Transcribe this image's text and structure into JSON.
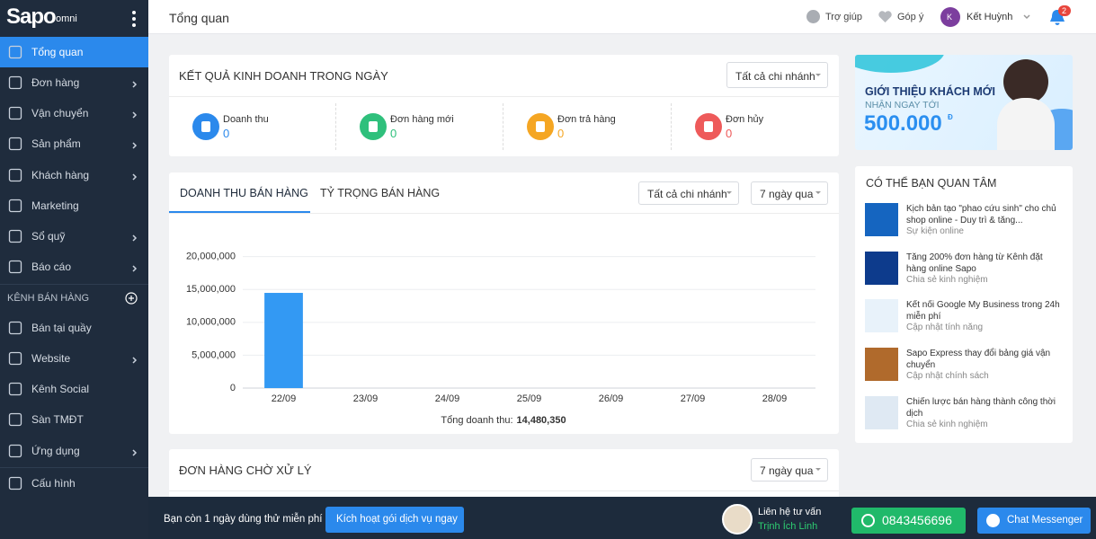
{
  "header": {
    "logo": "Sapo",
    "logo_sub": "omni",
    "title": "Tổng quan",
    "help": "Trợ giúp",
    "feedback": "Góp ý",
    "avatar": "K",
    "user": "Kết Huỳnh",
    "notifications": 2
  },
  "sidebar": {
    "items": [
      "Tổng quan",
      "Đơn hàng",
      "Vận chuyển",
      "Sản phẩm",
      "Khách hàng",
      "Marketing",
      "Sổ quỹ",
      "Báo cáo"
    ],
    "section": "KÊNH BÁN HÀNG",
    "channels": [
      "Bán tại quầy",
      "Website",
      "Kênh Social",
      "Sàn TMĐT",
      "Ứng dụng"
    ],
    "settings": "Cấu hình"
  },
  "business": {
    "title": "KẾT QUẢ KINH DOANH TRONG NGÀY",
    "branch": "Tất cả chi nhánh",
    "stats": [
      {
        "label": "Doanh thu",
        "value": 0
      },
      {
        "label": "Đơn hàng mới",
        "value": 0
      },
      {
        "label": "Đơn trả hàng",
        "value": 0
      },
      {
        "label": "Đơn hủy",
        "value": 0
      }
    ]
  },
  "sales": {
    "tabs": [
      "DOANH THU BÁN HÀNG",
      "TỶ TRỌNG BÁN HÀNG"
    ],
    "branch": "Tất cả chi nhánh",
    "period": "7 ngày qua",
    "total_label": "Tổng doanh thu:",
    "total": "14,480,350"
  },
  "chart_data": {
    "type": "bar",
    "categories": [
      "22/09",
      "23/09",
      "24/09",
      "25/09",
      "26/09",
      "27/09",
      "28/09"
    ],
    "values": [
      14480350,
      0,
      0,
      0,
      0,
      0,
      0
    ],
    "color": "#3399f3",
    "ylim": [
      0,
      22000000
    ],
    "yticks": [
      0,
      {
        "value": 5000000,
        "label": "5,000,000"
      },
      {
        "value": 10000000,
        "label": "10,000,000"
      },
      {
        "value": 15000000,
        "label": "15,000,000"
      },
      {
        "value": 20000000,
        "label": "20,000,000"
      }
    ],
    "grid": true
  },
  "pending": {
    "title": "ĐƠN HÀNG CHỜ XỬ LÝ",
    "period": "7 ngày qua"
  },
  "promo": {
    "title": "GIỚI THIỆU KHÁCH MỚI",
    "subtitle": "NHẬN NGAY TỚI",
    "amount": "500.000",
    "currency": "Đ"
  },
  "news": {
    "title": "CÓ THỂ BẠN QUAN TÂM",
    "items": [
      {
        "title": "Kịch bản tạo \"phao cứu sinh\" cho chủ shop online - Duy trì & tăng...",
        "tag": "Sự kiện online"
      },
      {
        "title": "Tăng 200% đơn hàng từ Kênh đặt hàng online Sapo",
        "tag": "Chia sẻ kinh nghiệm"
      },
      {
        "title": "Kết nối Google My Business trong 24h miễn phí",
        "tag": "Cập nhật tính năng"
      },
      {
        "title": "Sapo Express thay đổi bảng giá vận chuyển",
        "tag": "Cập nhật chính sách"
      },
      {
        "title": "Chiến lược bán hàng thành công thời dịch",
        "tag": "Chia sẻ kinh nghiệm"
      }
    ]
  },
  "footer": {
    "trial": "Bạn còn 1 ngày dùng thử miễn phí",
    "activate": "Kích hoạt gói dịch vụ ngay",
    "contact": "Liên hệ tư vấn",
    "consultant": "Trịnh Ích Linh",
    "phone": "0843456696",
    "messenger": "Chat Messenger"
  }
}
